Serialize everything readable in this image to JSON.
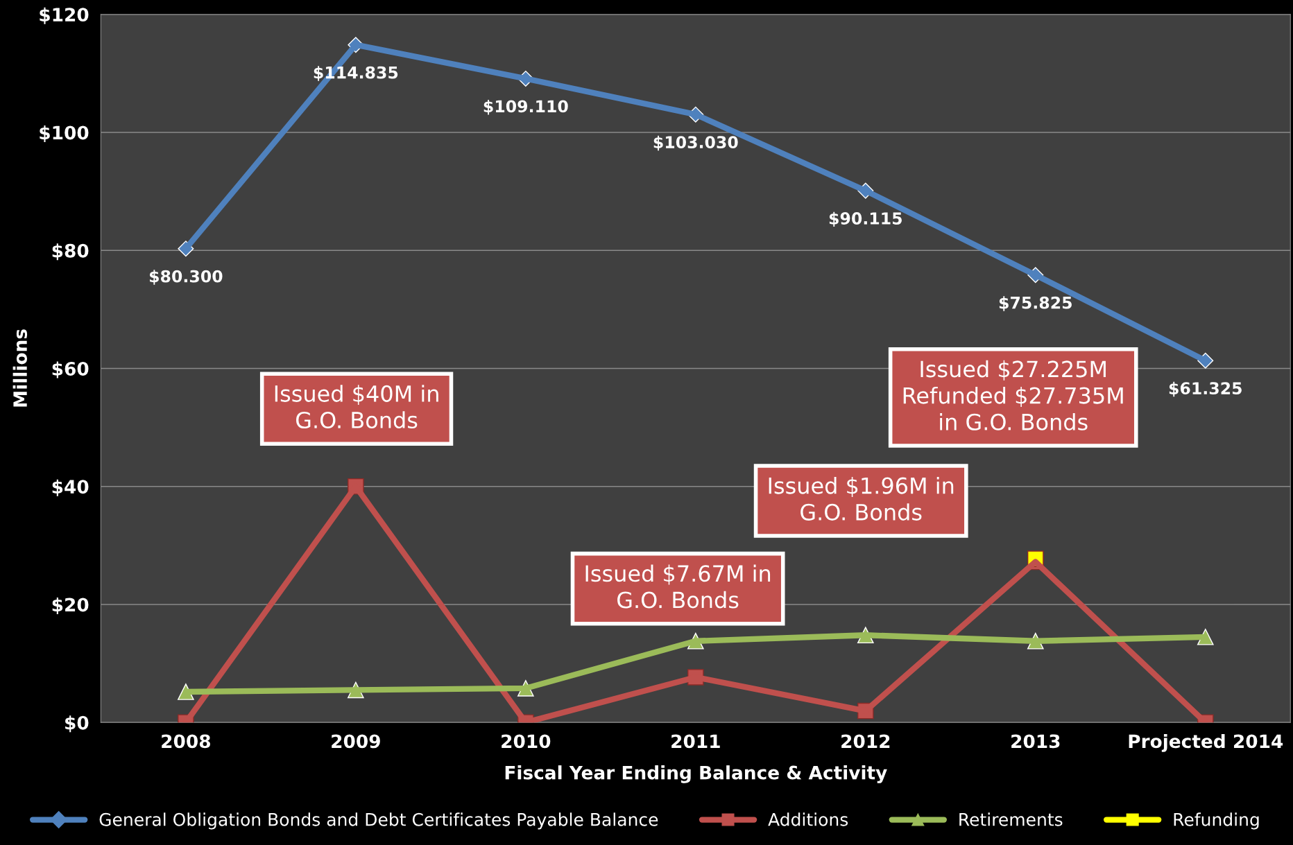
{
  "chart_data": {
    "type": "line",
    "xlabel": "Fiscal Year Ending Balance & Activity",
    "ylabel": "Millions",
    "categories": [
      "2008",
      "2009",
      "2010",
      "2011",
      "2012",
      "2013",
      "Projected 2014"
    ],
    "series": [
      {
        "name": "General Obligation Bonds and Debt Certificates Payable Balance",
        "color": "#4f81bd",
        "marker": "diamond",
        "values": [
          80.3,
          114.835,
          109.11,
          103.03,
          90.115,
          75.825,
          61.325
        ],
        "value_labels": [
          "$80.300",
          "$114.835",
          "$109.110",
          "$103.030",
          "$90.115",
          "$75.825",
          "$61.325"
        ]
      },
      {
        "name": "Additions",
        "color": "#c0504d",
        "marker": "square",
        "values": [
          0,
          40,
          0,
          7.67,
          1.96,
          27.225,
          0
        ]
      },
      {
        "name": "Retirements",
        "color": "#9bbb59",
        "marker": "triangle",
        "values": [
          5.2,
          5.5,
          5.8,
          13.8,
          14.8,
          13.8,
          14.5
        ]
      },
      {
        "name": "Refunding",
        "color": "#ffff00",
        "marker": "square",
        "values": [
          null,
          null,
          null,
          null,
          null,
          27.735,
          null
        ]
      }
    ],
    "ylim": [
      0,
      120
    ],
    "yticks": [
      {
        "value": 0,
        "label": "$0"
      },
      {
        "value": 20,
        "label": "$20"
      },
      {
        "value": 40,
        "label": "$40"
      },
      {
        "value": 60,
        "label": "$60"
      },
      {
        "value": 80,
        "label": "$80"
      },
      {
        "value": 100,
        "label": "$100"
      },
      {
        "value": 120,
        "label": "$120"
      }
    ],
    "grid": "y",
    "legend": "bottom",
    "annotations": [
      "Issued $40M in\nG.O. Bonds",
      "Issued $7.67M in\nG.O. Bonds",
      "Issued $1.96M in\nG.O. Bonds",
      "Issued $27.225M\nRefunded $27.735M\nin G.O. Bonds"
    ]
  }
}
